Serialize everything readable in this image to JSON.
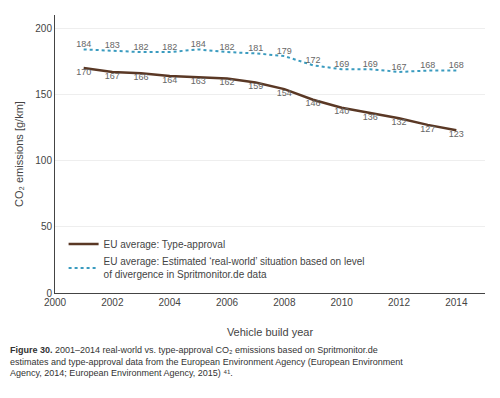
{
  "chart_data": {
    "type": "line",
    "x": [
      2001,
      2002,
      2003,
      2004,
      2005,
      2006,
      2007,
      2008,
      2009,
      2010,
      2011,
      2012,
      2013,
      2014
    ],
    "series": [
      {
        "name": "EU average: Type-approval",
        "color": "#5a3825",
        "line_style": "solid",
        "values": [
          170,
          167,
          166,
          164,
          163,
          162,
          159,
          154,
          146,
          140,
          136,
          132,
          127,
          123
        ]
      },
      {
        "name": "EU average: Estimated ‘real-world’ situation based on level\nof divergence in Spritmonitor.de data",
        "color": "#3a9bbf",
        "line_style": "dotted",
        "values": [
          184,
          183,
          182,
          182,
          184,
          182,
          181,
          179,
          172,
          169,
          169,
          167,
          168,
          168
        ]
      }
    ],
    "xlabel": "Vehicle build year",
    "ylabel": "CO₂ emissions [g/km]",
    "xlim": [
      2000,
      2015
    ],
    "xticks": [
      2000,
      2002,
      2004,
      2006,
      2008,
      2010,
      2012,
      2014
    ],
    "ylim": [
      0,
      210
    ],
    "yticks": [
      0,
      50,
      100,
      150,
      200
    ],
    "grid": true,
    "legend": "lower left",
    "data_labels": true,
    "annotations": [
      "Figure 30.",
      " 2001–2014 real-world vs. type-approval CO₂ emissions based on Spritmonitor.de\nestimates and type-approval data from the European Environment Agency (European Environment\nAgency, 2014; European Environment Agency, 2015) ⁴¹."
    ]
  }
}
